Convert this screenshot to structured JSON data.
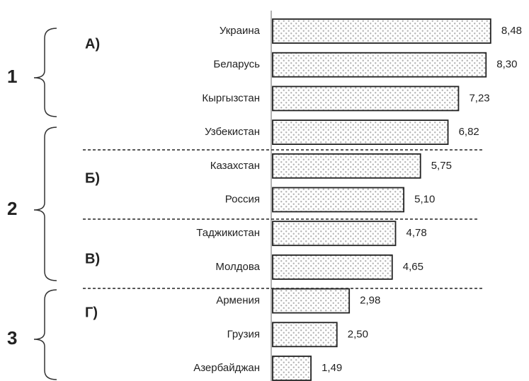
{
  "chart_data": {
    "type": "bar",
    "orientation": "horizontal",
    "categories": [
      "Украина",
      "Беларусь",
      "Кыргызстан",
      "Узбекистан",
      "Казахстан",
      "Россия",
      "Таджикистан",
      "Молдова",
      "Армения",
      "Грузия",
      "Азербайджан"
    ],
    "values": [
      8.48,
      8.3,
      7.23,
      6.82,
      5.75,
      5.1,
      4.78,
      4.65,
      2.98,
      2.5,
      1.49
    ],
    "value_labels": [
      "8,48",
      "8,30",
      "7,23",
      "6,82",
      "5,75",
      "5,10",
      "4,78",
      "4,65",
      "2,98",
      "2,50",
      "1,49"
    ],
    "color": "#b5b5b5",
    "groups": [
      "1",
      "2",
      "3"
    ],
    "subgroups": [
      "А)",
      "Б)",
      "В)",
      "Г)"
    ]
  }
}
